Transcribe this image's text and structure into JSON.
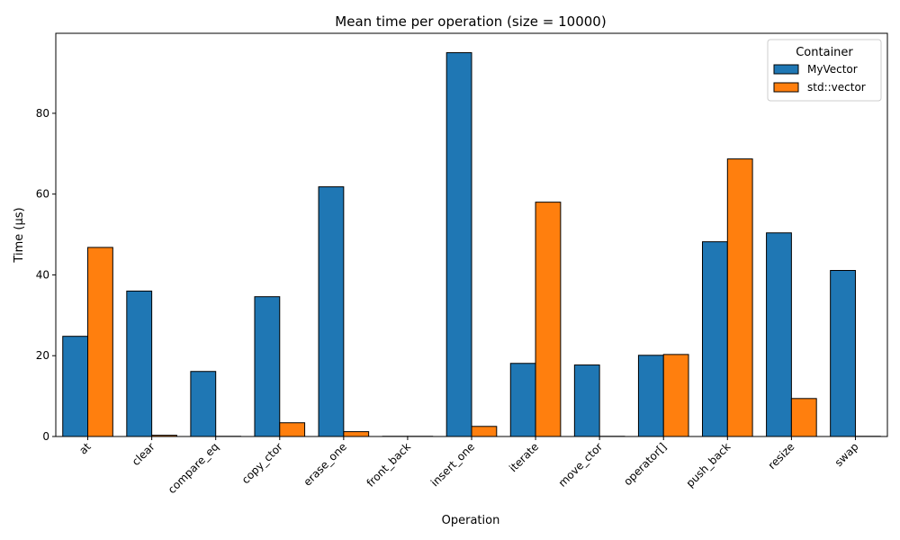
{
  "chart_data": {
    "type": "bar",
    "title": "Mean time per operation (size = 10000)",
    "xlabel": "Operation",
    "ylabel": "Time (µs)",
    "ylim": [
      0,
      99.8
    ],
    "yticks": [
      0,
      20,
      40,
      60,
      80
    ],
    "grid": false,
    "legend": {
      "title": "Container",
      "placement": "top-right"
    },
    "categories": [
      "at",
      "clear",
      "compare_eq",
      "copy_ctor",
      "erase_one",
      "front_back",
      "insert_one",
      "iterate",
      "move_ctor",
      "operator[]",
      "push_back",
      "resize",
      "swap"
    ],
    "series": [
      {
        "name": "MyVector",
        "color": "#1f77b4",
        "values": [
          24.8,
          36.0,
          16.1,
          34.6,
          61.8,
          0.05,
          95.0,
          18.1,
          17.7,
          20.1,
          48.2,
          50.4,
          41.1
        ]
      },
      {
        "name": "std::vector",
        "color": "#ff7f0e",
        "values": [
          46.8,
          0.3,
          0.05,
          3.4,
          1.2,
          0.05,
          2.5,
          58.0,
          0.05,
          20.3,
          68.7,
          9.4,
          0.05
        ]
      }
    ]
  }
}
